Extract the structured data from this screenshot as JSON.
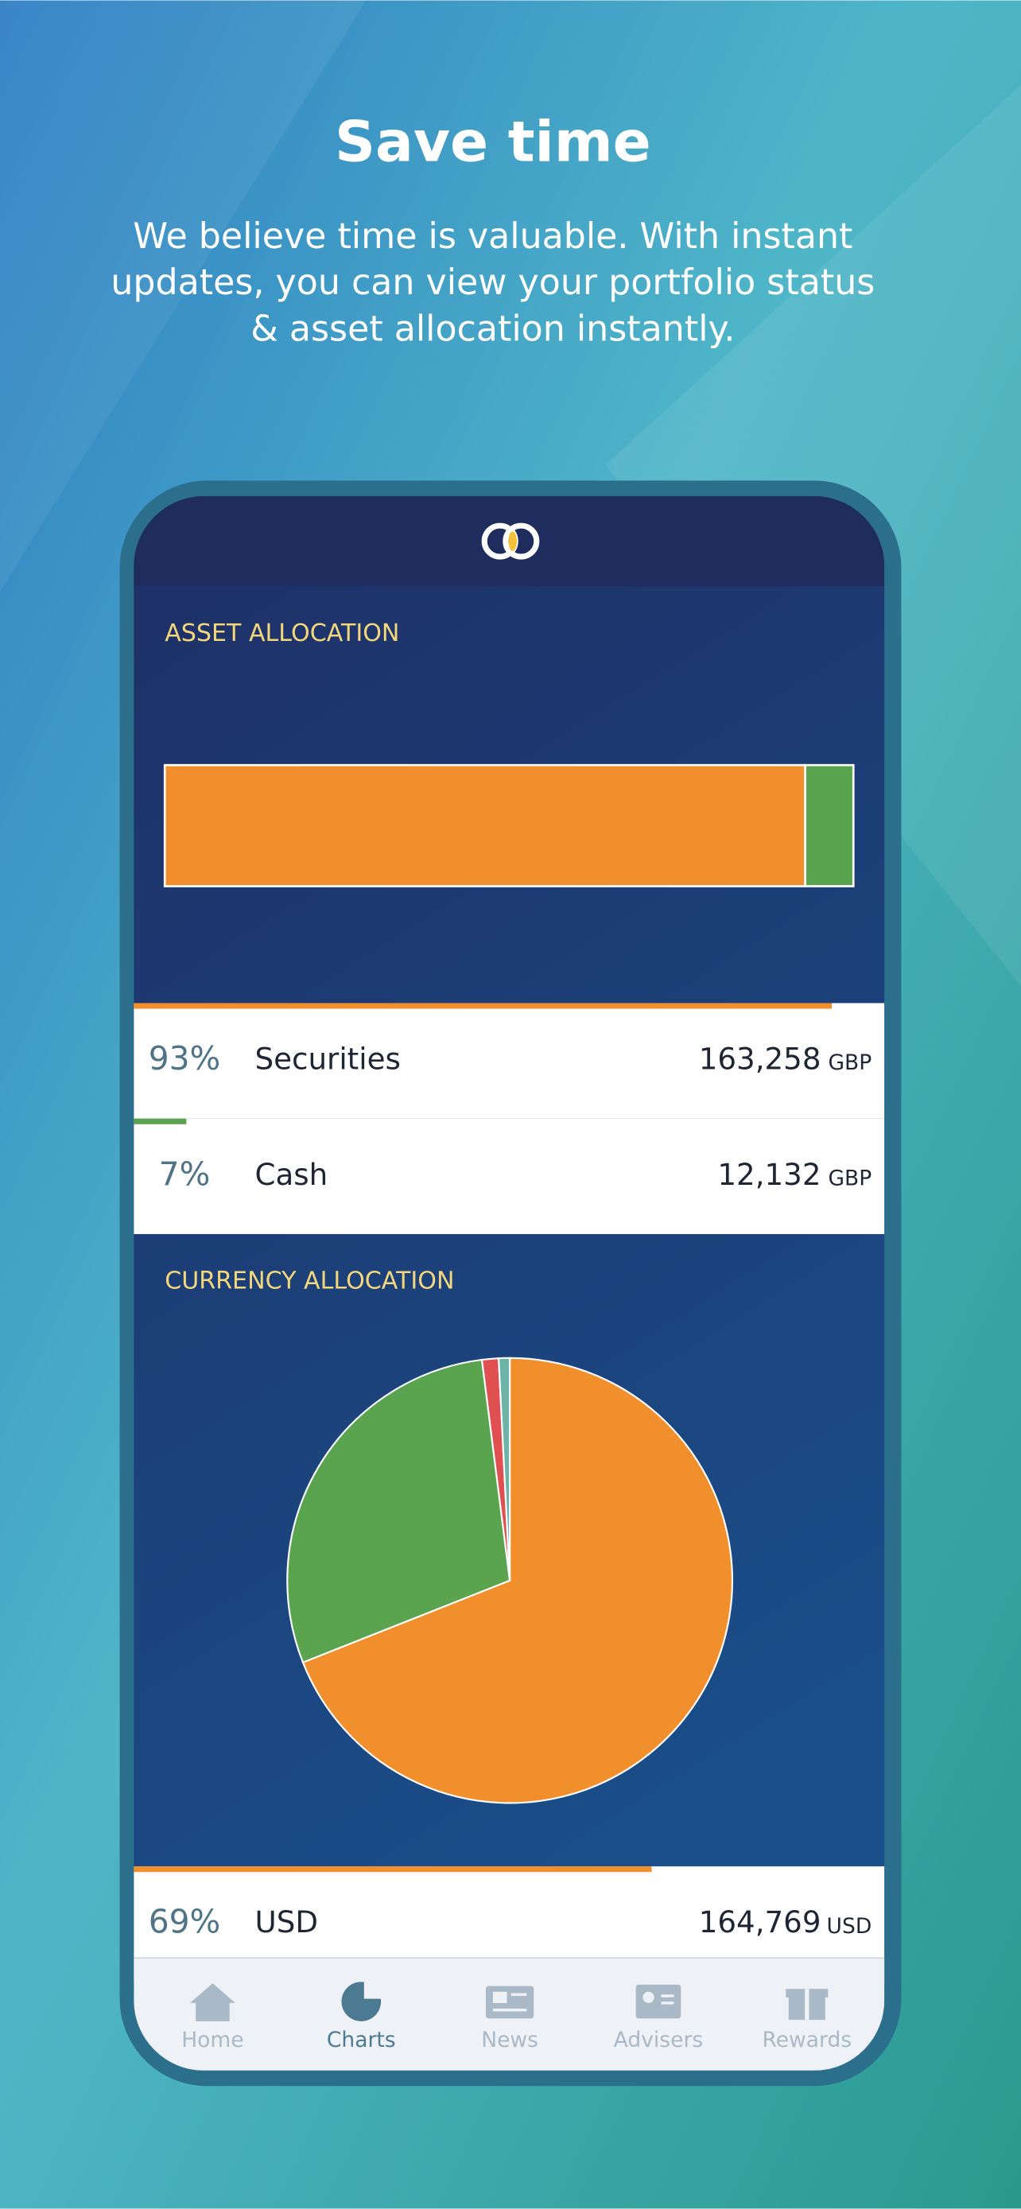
{
  "header": {
    "title": "Save time",
    "subtitle_lines": [
      "We believe time is valuable. With instant",
      "updates, you can view your portfolio status",
      "& asset allocation instantly."
    ]
  },
  "chart_data": [
    {
      "type": "stacked-bar",
      "title": "ASSET ALLOCATION",
      "categories": [
        "Securities",
        "Cash"
      ],
      "values": [
        93,
        7
      ],
      "value_labels": [
        "93%",
        "7%"
      ],
      "amounts": [
        163258,
        12132
      ],
      "amount_labels": [
        "163,258",
        "12,132"
      ],
      "currencies": [
        "GBP",
        "GBP"
      ],
      "colors": [
        "#f28f2d",
        "#5aa34f"
      ]
    },
    {
      "type": "pie",
      "title": "CURRENCY ALLOCATION",
      "categories": [
        "USD",
        null,
        null,
        null
      ],
      "values": [
        69,
        29,
        1.2,
        0.8
      ],
      "value_labels": [
        "69%",
        null,
        null,
        null
      ],
      "amounts": [
        164769,
        null,
        null,
        null
      ],
      "amount_labels": [
        "164,769",
        null,
        null,
        null
      ],
      "currencies": [
        "USD",
        null,
        null,
        null
      ],
      "colors": [
        "#f28f2d",
        "#5aa34f",
        "#e05050",
        "#6db3a8"
      ]
    }
  ],
  "nav": {
    "items": [
      "Home",
      "Charts",
      "News",
      "Advisers",
      "Rewards"
    ],
    "active": 1
  }
}
